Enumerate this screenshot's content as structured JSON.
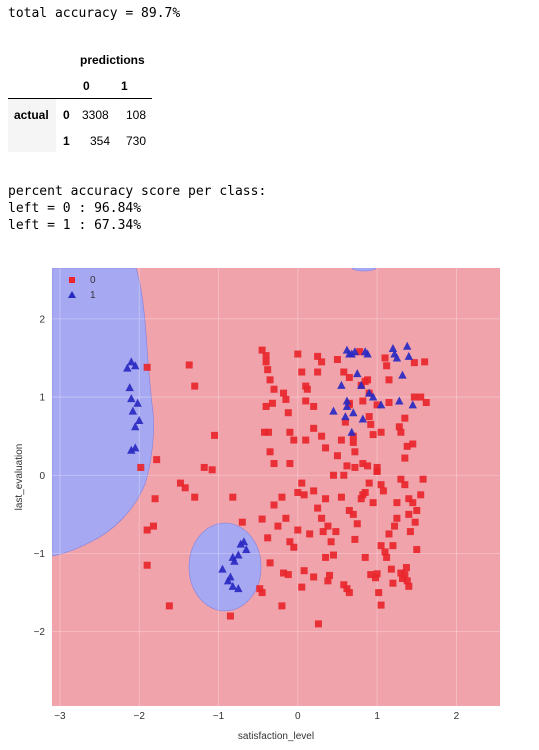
{
  "accuracy_text": "total accuracy = 89.7%",
  "confusion": {
    "header": "predictions",
    "columns": [
      "0",
      "1"
    ],
    "row_label": "actual",
    "rows": [
      {
        "label": "0",
        "values": [
          "3308",
          "108"
        ]
      },
      {
        "label": "1",
        "values": [
          "354",
          "730"
        ]
      }
    ]
  },
  "per_class": {
    "title": "percent accuracy score per class:",
    "lines": [
      "left = 0 : 96.84%",
      "left = 1 : 67.34%"
    ]
  },
  "colors": {
    "region0": "#f0a3ab",
    "region1": "#a7a8f2",
    "class0": "#e8262b",
    "class1": "#2929c2"
  },
  "chart_data": {
    "type": "scatter",
    "title": "",
    "xlabel": "satisfaction_level",
    "ylabel": "last_evaluation",
    "xlim": [
      -3.1,
      2.55
    ],
    "ylim": [
      -2.95,
      2.65
    ],
    "xticks": [
      -3,
      -2,
      -1,
      0,
      1,
      2
    ],
    "yticks": [
      -2,
      -1,
      0,
      1,
      2
    ],
    "grid": true,
    "legend": {
      "placement": "top-left",
      "entries": [
        "0",
        "1"
      ]
    },
    "series": [
      {
        "name": "0",
        "marker": "square",
        "points": [
          [
            -1.9,
            1.38
          ],
          [
            -1.37,
            1.41
          ],
          [
            -1.3,
            1.14
          ],
          [
            -1.05,
            0.51
          ],
          [
            -1.78,
            0.2
          ],
          [
            -1.98,
            0.1
          ],
          [
            -1.18,
            0.1
          ],
          [
            -1.48,
            -0.1
          ],
          [
            -1.42,
            -0.16
          ],
          [
            -1.08,
            0.07
          ],
          [
            -1.8,
            -0.3
          ],
          [
            -1.82,
            -0.65
          ],
          [
            -1.9,
            -0.7
          ],
          [
            -1.3,
            -0.28
          ],
          [
            -0.82,
            -0.28
          ],
          [
            -0.7,
            -0.6
          ],
          [
            -1.9,
            -1.15
          ],
          [
            -1.62,
            -1.67
          ],
          [
            -0.85,
            -1.8
          ],
          [
            -0.45,
            -0.56
          ],
          [
            -0.38,
            -0.8
          ],
          [
            -0.35,
            -1.12
          ],
          [
            -0.48,
            -1.45
          ],
          [
            -0.45,
            -1.5
          ],
          [
            -0.2,
            -1.67
          ],
          [
            -0.18,
            -1.25
          ],
          [
            -0.12,
            -1.27
          ],
          [
            0.26,
            -1.9
          ],
          [
            0.2,
            -1.3
          ],
          [
            0.05,
            -1.43
          ],
          [
            0.35,
            -1.05
          ],
          [
            0.38,
            -1.35
          ],
          [
            0.45,
            -1.02
          ],
          [
            0.4,
            -1.28
          ],
          [
            0.58,
            -1.4
          ],
          [
            0.62,
            -1.45
          ],
          [
            0.65,
            -1.5
          ],
          [
            0.85,
            -1.05
          ],
          [
            0.92,
            -1.27
          ],
          [
            0.98,
            -1.31
          ],
          [
            1.0,
            -1.26
          ],
          [
            1.02,
            -1.5
          ],
          [
            1.05,
            -1.66
          ],
          [
            1.2,
            -0.9
          ],
          [
            1.3,
            -1.25
          ],
          [
            1.32,
            -1.32
          ],
          [
            1.35,
            -1.27
          ],
          [
            1.38,
            -1.35
          ],
          [
            1.4,
            -1.42
          ],
          [
            1.37,
            -1.18
          ],
          [
            1.5,
            -0.95
          ],
          [
            1.48,
            -0.6
          ],
          [
            1.42,
            -0.72
          ],
          [
            1.4,
            -0.5
          ],
          [
            1.35,
            0.22
          ],
          [
            1.38,
            0.37
          ],
          [
            1.28,
            0.62
          ],
          [
            1.3,
            0.55
          ],
          [
            1.45,
            0.4
          ],
          [
            1.47,
            1.44
          ],
          [
            1.47,
            1.0
          ],
          [
            1.55,
            1.0
          ],
          [
            1.6,
            1.45
          ],
          [
            1.62,
            0.93
          ],
          [
            1.35,
            0.73
          ],
          [
            -0.45,
            1.6
          ],
          [
            -0.4,
            1.53
          ],
          [
            -0.4,
            1.45
          ],
          [
            -0.38,
            1.35
          ],
          [
            -0.35,
            1.22
          ],
          [
            -0.3,
            1.1
          ],
          [
            -0.32,
            0.92
          ],
          [
            -0.4,
            0.88
          ],
          [
            -0.42,
            0.55
          ],
          [
            -0.37,
            0.55
          ],
          [
            -0.35,
            0.3
          ],
          [
            -0.3,
            0.15
          ],
          [
            -0.18,
            1.05
          ],
          [
            -0.15,
            0.97
          ],
          [
            -0.12,
            0.8
          ],
          [
            -0.1,
            0.55
          ],
          [
            -0.05,
            0.45
          ],
          [
            0.0,
            1.55
          ],
          [
            0.05,
            1.32
          ],
          [
            0.1,
            1.14
          ],
          [
            0.12,
            1.1
          ],
          [
            0.1,
            0.95
          ],
          [
            0.1,
            0.45
          ],
          [
            0.25,
            1.52
          ],
          [
            0.3,
            1.45
          ],
          [
            0.25,
            1.32
          ],
          [
            0.2,
            0.88
          ],
          [
            0.2,
            0.6
          ],
          [
            0.3,
            0.5
          ],
          [
            0.35,
            0.35
          ],
          [
            0.5,
            1.48
          ],
          [
            0.58,
            1.32
          ],
          [
            0.65,
            0.92
          ],
          [
            0.65,
            0.9
          ],
          [
            0.7,
            0.5
          ],
          [
            0.72,
            0.3
          ],
          [
            0.62,
            0.12
          ],
          [
            0.72,
            0.1
          ],
          [
            0.82,
            0.15
          ],
          [
            0.88,
            0.12
          ],
          [
            0.85,
            1.2
          ],
          [
            0.9,
            1.05
          ],
          [
            0.9,
            0.75
          ],
          [
            0.92,
            0.65
          ],
          [
            0.95,
            0.52
          ],
          [
            1.0,
            0.1
          ],
          [
            1.0,
            0.05
          ],
          [
            1.1,
            1.5
          ],
          [
            1.12,
            1.4
          ],
          [
            1.15,
            1.22
          ],
          [
            1.15,
            0.93
          ],
          [
            1.0,
            0.9
          ],
          [
            1.05,
            0.55
          ],
          [
            -0.1,
            0.15
          ],
          [
            0.0,
            -0.22
          ],
          [
            0.05,
            -0.1
          ],
          [
            0.08,
            -0.25
          ],
          [
            0.2,
            -0.2
          ],
          [
            0.25,
            -0.42
          ],
          [
            0.35,
            -0.3
          ],
          [
            0.32,
            -0.72
          ],
          [
            0.38,
            -0.65
          ],
          [
            0.42,
            -0.85
          ],
          [
            0.55,
            -0.28
          ],
          [
            0.58,
            0.0
          ],
          [
            0.65,
            -0.45
          ],
          [
            0.7,
            -0.5
          ],
          [
            0.72,
            -0.82
          ],
          [
            0.75,
            -0.62
          ],
          [
            0.8,
            -0.3
          ],
          [
            0.82,
            -0.25
          ],
          [
            0.85,
            -0.22
          ],
          [
            0.9,
            -0.1
          ],
          [
            0.95,
            -0.35
          ],
          [
            1.0,
            0.05
          ],
          [
            1.05,
            -0.12
          ],
          [
            1.08,
            -0.2
          ],
          [
            1.15,
            -0.75
          ],
          [
            1.22,
            -0.65
          ],
          [
            1.25,
            -0.55
          ],
          [
            0.15,
            -0.75
          ],
          [
            0.3,
            -0.55
          ],
          [
            0.48,
            -0.72
          ],
          [
            -0.2,
            -0.28
          ],
          [
            -0.15,
            -0.55
          ],
          [
            -0.1,
            -0.85
          ],
          [
            -0.05,
            -0.92
          ],
          [
            0.0,
            -0.7
          ],
          [
            0.08,
            -1.22
          ],
          [
            -0.25,
            -0.65
          ],
          [
            -0.3,
            -0.38
          ],
          [
            0.45,
            0.0
          ],
          [
            0.5,
            0.25
          ],
          [
            0.55,
            0.45
          ],
          [
            0.6,
            0.68
          ],
          [
            0.65,
            1.25
          ],
          [
            0.7,
            0.42
          ],
          [
            0.78,
            1.58
          ],
          [
            0.8,
            1.15
          ],
          [
            0.82,
            0.95
          ],
          [
            0.88,
            1.22
          ],
          [
            1.05,
            -0.9
          ],
          [
            1.1,
            -0.98
          ],
          [
            1.12,
            -1.05
          ],
          [
            1.18,
            -1.2
          ],
          [
            1.2,
            -1.38
          ],
          [
            1.25,
            -0.35
          ],
          [
            1.3,
            -0.05
          ],
          [
            1.35,
            -0.12
          ],
          [
            1.4,
            -0.3
          ],
          [
            1.45,
            -0.35
          ],
          [
            1.5,
            -0.45
          ],
          [
            1.55,
            -0.25
          ],
          [
            1.58,
            -0.05
          ]
        ]
      },
      {
        "name": "1",
        "marker": "triangle",
        "points": [
          [
            -2.1,
            1.45
          ],
          [
            -2.05,
            1.4
          ],
          [
            -2.15,
            1.37
          ],
          [
            -2.12,
            1.12
          ],
          [
            -2.08,
            0.82
          ],
          [
            -2.02,
            0.92
          ],
          [
            -2.0,
            0.7
          ],
          [
            -2.05,
            0.62
          ],
          [
            -2.1,
            0.32
          ],
          [
            -2.05,
            0.35
          ],
          [
            -2.1,
            0.98
          ],
          [
            -0.68,
            -0.85
          ],
          [
            -0.72,
            -0.88
          ],
          [
            -0.65,
            -0.95
          ],
          [
            -0.75,
            -1.02
          ],
          [
            -0.8,
            -1.1
          ],
          [
            -0.85,
            -1.3
          ],
          [
            -0.95,
            -1.2
          ],
          [
            -0.88,
            -1.35
          ],
          [
            -0.82,
            -1.42
          ],
          [
            -0.75,
            -1.45
          ],
          [
            -0.82,
            -1.05
          ],
          [
            0.62,
            1.6
          ],
          [
            0.65,
            1.55
          ],
          [
            0.72,
            1.58
          ],
          [
            0.68,
            1.55
          ],
          [
            0.85,
            1.58
          ],
          [
            0.88,
            1.55
          ],
          [
            0.55,
            1.15
          ],
          [
            0.62,
            0.95
          ],
          [
            0.62,
            0.88
          ],
          [
            0.7,
            0.8
          ],
          [
            0.6,
            0.75
          ],
          [
            0.68,
            0.55
          ],
          [
            0.45,
            0.82
          ],
          [
            0.75,
            1.3
          ],
          [
            0.8,
            1.15
          ],
          [
            0.82,
            0.72
          ],
          [
            0.95,
            1.0
          ],
          [
            0.9,
            1.05
          ],
          [
            1.05,
            0.9
          ],
          [
            1.2,
            1.62
          ],
          [
            1.22,
            1.55
          ],
          [
            1.25,
            1.5
          ],
          [
            1.28,
            0.95
          ],
          [
            1.38,
            1.65
          ],
          [
            1.4,
            1.52
          ],
          [
            1.45,
            0.9
          ],
          [
            1.32,
            1.28
          ]
        ]
      }
    ]
  }
}
